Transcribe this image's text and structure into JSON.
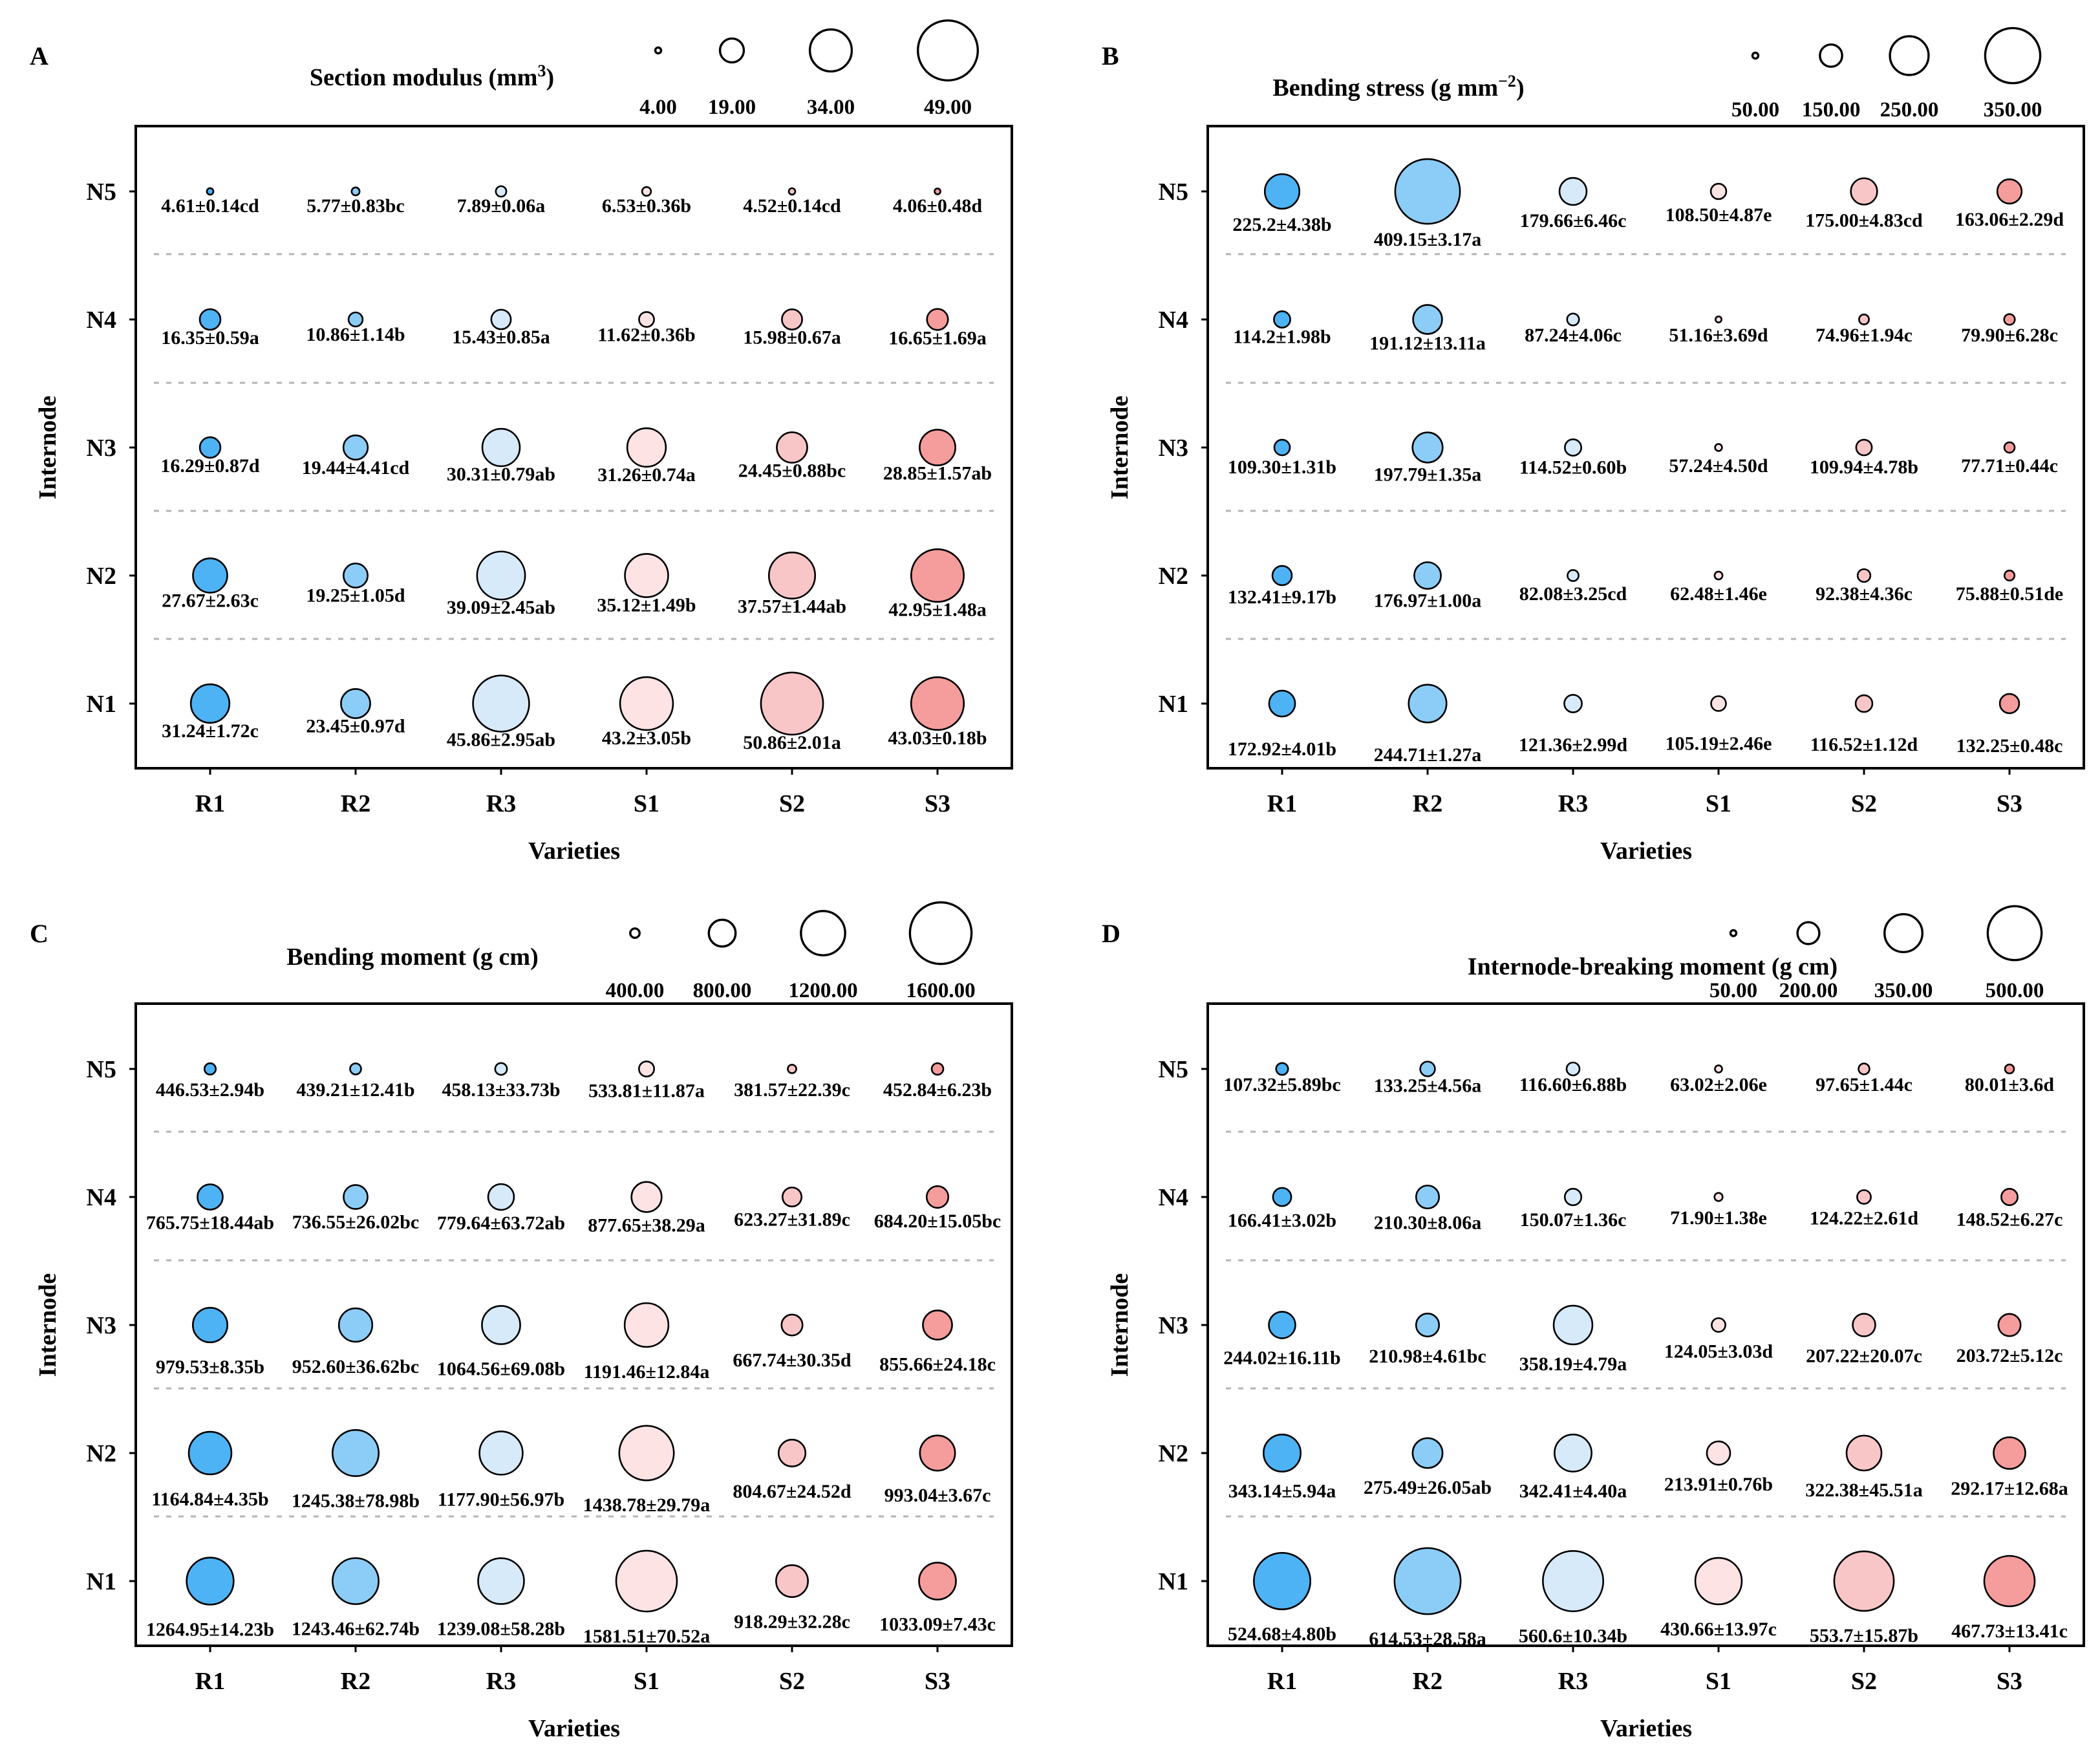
{
  "figure": {
    "x_categories": [
      "R1",
      "R2",
      "R3",
      "S1",
      "S2",
      "S3"
    ],
    "y_categories": [
      "N5",
      "N4",
      "N3",
      "N2",
      "N1"
    ],
    "xlabel": "Varieties",
    "ylabel": "Internode",
    "category_colors": [
      "#4db3f5",
      "#8ccdf7",
      "#d6eafa",
      "#fde3e3",
      "#f9c6c7",
      "#f59c9c"
    ]
  },
  "chart_data": [
    {
      "type": "scatter",
      "panel": "A",
      "title": "Section modulus (mm³)",
      "title_main": "Section modulus (mm",
      "title_sup": "3",
      "title_end": ")",
      "size_legend": {
        "values": [
          4,
          19,
          34,
          49
        ],
        "labels": [
          "4.00",
          "19.00",
          "34.00",
          "49.00"
        ]
      },
      "xlabel": "Varieties",
      "ylabel": "Internode",
      "rows": [
        {
          "internode": "N5",
          "values": [
            4.61,
            5.77,
            7.89,
            6.53,
            4.52,
            4.06
          ],
          "labels": [
            "4.61±0.14cd",
            "5.77±0.83bc",
            "7.89±0.06a",
            "6.53±0.36b",
            "4.52±0.14cd",
            "4.06±0.48d"
          ]
        },
        {
          "internode": "N4",
          "values": [
            16.35,
            10.86,
            15.43,
            11.62,
            15.98,
            16.65
          ],
          "labels": [
            "16.35±0.59a",
            "10.86±1.14b",
            "15.43±0.85a",
            "11.62±0.36b",
            "15.98±0.67a",
            "16.65±1.69a"
          ]
        },
        {
          "internode": "N3",
          "values": [
            16.29,
            19.44,
            30.31,
            31.26,
            24.45,
            28.85
          ],
          "labels": [
            "16.29±0.87d",
            "19.44±4.41cd",
            "30.31±0.79ab",
            "31.26±0.74a",
            "24.45±0.88bc",
            "28.85±1.57ab"
          ]
        },
        {
          "internode": "N2",
          "values": [
            27.67,
            19.25,
            39.09,
            35.12,
            37.57,
            42.95
          ],
          "labels": [
            "27.67±2.63c",
            "19.25±1.05d",
            "39.09±2.45ab",
            "35.12±1.49b",
            "37.57±1.44ab",
            "42.95±1.48a"
          ]
        },
        {
          "internode": "N1",
          "values": [
            31.24,
            23.45,
            45.86,
            43.2,
            50.86,
            43.03
          ],
          "labels": [
            "31.24±1.72c",
            "23.45±0.97d",
            "45.86±2.95ab",
            "43.2±3.05b",
            "50.86±2.01a",
            "43.03±0.18b"
          ]
        }
      ]
    },
    {
      "type": "scatter",
      "panel": "B",
      "title": "Bending stress (g mm⁻²)",
      "title_main": "Bending stress (g mm",
      "title_sup": "−2",
      "title_end": ")",
      "size_legend": {
        "values": [
          50,
          150,
          250,
          350
        ],
        "labels": [
          "50.00",
          "150.00",
          "250.00",
          "350.00"
        ]
      },
      "xlabel": "Varieties",
      "ylabel": "Internode",
      "rows": [
        {
          "internode": "N5",
          "values": [
            225.2,
            409.15,
            179.66,
            108.5,
            175.0,
            163.06
          ],
          "labels": [
            "225.2±4.38b",
            "409.15±3.17a",
            "179.66±6.46c",
            "108.50±4.87e",
            "175.00±4.83cd",
            "163.06±2.29d"
          ]
        },
        {
          "internode": "N4",
          "values": [
            114.2,
            191.12,
            87.24,
            51.16,
            74.96,
            79.9
          ],
          "labels": [
            "114.2±1.98b",
            "191.12±13.11a",
            "87.24±4.06c",
            "51.16±3.69d",
            "74.96±1.94c",
            "79.90±6.28c"
          ]
        },
        {
          "internode": "N3",
          "values": [
            109.3,
            197.79,
            114.52,
            57.24,
            109.94,
            77.71
          ],
          "labels": [
            "109.30±1.31b",
            "197.79±1.35a",
            "114.52±0.60b",
            "57.24±4.50d",
            "109.94±4.78b",
            "77.71±0.44c"
          ]
        },
        {
          "internode": "N2",
          "values": [
            132.41,
            176.97,
            82.08,
            62.48,
            92.38,
            75.88
          ],
          "labels": [
            "132.41±9.17b",
            "176.97±1.00a",
            "82.08±3.25cd",
            "62.48±1.46e",
            "92.38±4.36c",
            "75.88±0.51de"
          ]
        },
        {
          "internode": "N1",
          "values": [
            172.92,
            244.71,
            121.36,
            105.19,
            116.52,
            132.25
          ],
          "labels": [
            "172.92±4.01b",
            "244.71±1.27a",
            "121.36±2.99d",
            "105.19±2.46e",
            "116.52±1.12d",
            "132.25±0.48c"
          ]
        }
      ]
    },
    {
      "type": "scatter",
      "panel": "C",
      "title": "Bending moment (g cm)",
      "title_main": "Bending moment (g cm)",
      "title_sup": "",
      "title_end": "",
      "size_legend": {
        "values": [
          400,
          800,
          1200,
          1600
        ],
        "labels": [
          "400.00",
          "800.00",
          "1200.00",
          "1600.00"
        ]
      },
      "xlabel": "Varieties",
      "ylabel": "Internode",
      "rows": [
        {
          "internode": "N5",
          "values": [
            446.53,
            439.21,
            458.13,
            533.81,
            381.57,
            452.84
          ],
          "labels": [
            "446.53±2.94b",
            "439.21±12.41b",
            "458.13±33.73b",
            "533.81±11.87a",
            "381.57±22.39c",
            "452.84±6.23b"
          ]
        },
        {
          "internode": "N4",
          "values": [
            765.75,
            736.55,
            779.64,
            877.65,
            623.27,
            684.2
          ],
          "labels": [
            "765.75±18.44ab",
            "736.55±26.02bc",
            "779.64±63.72ab",
            "877.65±38.29a",
            "623.27±31.89c",
            "684.20±15.05bc"
          ]
        },
        {
          "internode": "N3",
          "values": [
            979.53,
            952.6,
            1064.56,
            1191.46,
            667.74,
            855.66
          ],
          "labels": [
            "979.53±8.35b",
            "952.60±36.62bc",
            "1064.56±69.08b",
            "1191.46±12.84a",
            "667.74±30.35d",
            "855.66±24.18c"
          ]
        },
        {
          "internode": "N2",
          "values": [
            1164.84,
            1245.38,
            1177.9,
            1438.78,
            804.67,
            993.04
          ],
          "labels": [
            "1164.84±4.35b",
            "1245.38±78.98b",
            "1177.90±56.97b",
            "1438.78±29.79a",
            "804.67±24.52d",
            "993.04±3.67c"
          ]
        },
        {
          "internode": "N1",
          "values": [
            1264.95,
            1243.46,
            1239.08,
            1581.51,
            918.29,
            1033.09
          ],
          "labels": [
            "1264.95±14.23b",
            "1243.46±62.74b",
            "1239.08±58.28b",
            "1581.51±70.52a",
            "918.29±32.28c",
            "1033.09±7.43c"
          ]
        }
      ]
    },
    {
      "type": "scatter",
      "panel": "D",
      "title": "Internode-breaking moment (g cm)",
      "title_main": "Internode-breaking moment (g cm)",
      "title_sup": "",
      "title_end": "",
      "size_legend": {
        "values": [
          50,
          200,
          350,
          500
        ],
        "labels": [
          "50.00",
          "200.00",
          "350.00",
          "500.00"
        ]
      },
      "xlabel": "Varieties",
      "ylabel": "Internode",
      "rows": [
        {
          "internode": "N5",
          "values": [
            107.32,
            133.25,
            116.6,
            63.02,
            97.65,
            80.01
          ],
          "labels": [
            "107.32±5.89bc",
            "133.25±4.56a",
            "116.60±6.88b",
            "63.02±2.06e",
            "97.65±1.44c",
            "80.01±3.6d"
          ]
        },
        {
          "internode": "N4",
          "values": [
            166.41,
            210.3,
            150.07,
            71.9,
            124.22,
            148.52
          ],
          "labels": [
            "166.41±3.02b",
            "210.30±8.06a",
            "150.07±1.36c",
            "71.90±1.38e",
            "124.22±2.61d",
            "148.52±6.27c"
          ]
        },
        {
          "internode": "N3",
          "values": [
            244.02,
            210.98,
            358.19,
            124.05,
            207.22,
            203.72
          ],
          "labels": [
            "244.02±16.11b",
            "210.98±4.61bc",
            "358.19±4.79a",
            "124.05±3.03d",
            "207.22±20.07c",
            "203.72±5.12c"
          ]
        },
        {
          "internode": "N2",
          "values": [
            343.14,
            275.49,
            342.41,
            213.91,
            322.38,
            292.17
          ],
          "labels": [
            "343.14±5.94a",
            "275.49±26.05ab",
            "342.41±4.40a",
            "213.91±0.76b",
            "322.38±45.51a",
            "292.17±12.68a"
          ]
        },
        {
          "internode": "N1",
          "values": [
            524.68,
            614.53,
            560.6,
            430.66,
            553.7,
            467.73
          ],
          "labels": [
            "524.68±4.80b",
            "614.53±28.58a",
            "560.6±10.34b",
            "430.66±13.97c",
            "553.7±15.87b",
            "467.73±13.41c"
          ]
        }
      ]
    }
  ]
}
